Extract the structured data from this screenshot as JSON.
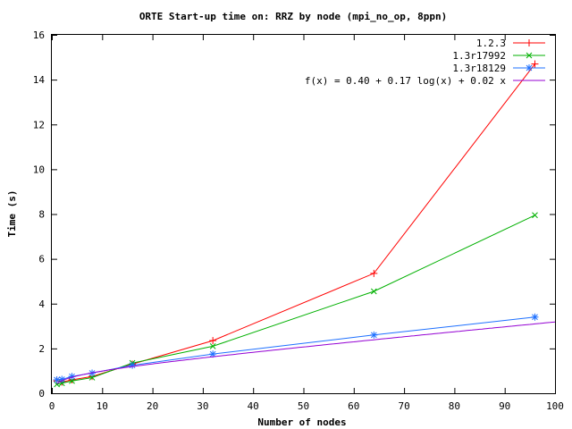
{
  "chart_data": {
    "type": "line",
    "title": "ORTE Start-up time on: RRZ by node (mpi_no_op, 8ppn)",
    "xlabel": "Number of nodes",
    "ylabel": "Time (s)",
    "xlim": [
      0,
      100
    ],
    "ylim": [
      0,
      16
    ],
    "xticks": [
      "0",
      "10",
      "20",
      "30",
      "40",
      "50",
      "60",
      "70",
      "80",
      "90",
      "100"
    ],
    "yticks": [
      "0",
      "2",
      "4",
      "6",
      "8",
      "10",
      "12",
      "14",
      "16"
    ],
    "grid": false,
    "legend_position": "top-right",
    "series": [
      {
        "name": "1.2.3",
        "color": "#ff0000",
        "marker": "plus",
        "x": [
          1,
          2,
          4,
          8,
          16,
          32,
          64,
          96
        ],
        "y": [
          0.55,
          0.5,
          0.6,
          0.75,
          1.3,
          2.35,
          5.35,
          14.7
        ]
      },
      {
        "name": "1.3r17992",
        "color": "#00b000",
        "marker": "cross",
        "x": [
          1,
          2,
          4,
          8,
          16,
          32,
          64,
          96
        ],
        "y": [
          0.4,
          0.45,
          0.55,
          0.7,
          1.35,
          2.1,
          4.55,
          7.95
        ]
      },
      {
        "name": "1.3r18129",
        "color": "#1e70ff",
        "marker": "star",
        "x": [
          1,
          2,
          4,
          8,
          16,
          32,
          64,
          96
        ],
        "y": [
          0.6,
          0.62,
          0.75,
          0.9,
          1.25,
          1.75,
          2.6,
          3.4
        ]
      },
      {
        "name": "f(x) = 0.40 + 0.17 log(x) + 0.02 x",
        "color": "#9400d3",
        "marker": "none",
        "function": {
          "a": 0.4,
          "b": 0.17,
          "c": 0.02
        }
      }
    ]
  }
}
